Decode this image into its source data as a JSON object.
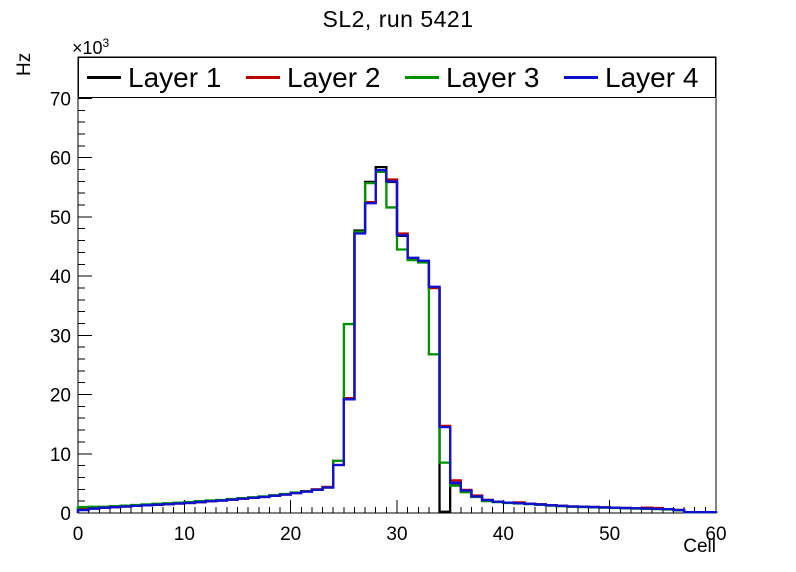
{
  "chart_data": {
    "type": "histogram-step",
    "title": "SL2, run 5421",
    "xlabel": "Cell",
    "ylabel": "Hz",
    "y_multiplier": "×10",
    "y_exponent": "3",
    "xlim": [
      0,
      60
    ],
    "ylim": [
      0,
      77
    ],
    "y_units": "×10³ Hz (values below are in thousands of Hz)",
    "bin_width": 1,
    "grid": false,
    "legend_position": "top-inside-full-width",
    "x_major_ticks": [
      0,
      10,
      20,
      30,
      40,
      50,
      60
    ],
    "x_minor_step": 1,
    "y_major_ticks": [
      0,
      10,
      20,
      30,
      40,
      50,
      60,
      70
    ],
    "y_minor_step": 2,
    "frame_color": "#000000",
    "background_color": "#ffffff",
    "series": [
      {
        "name": "Layer 1",
        "color": "#000000",
        "values": [
          0.6,
          0.75,
          0.9,
          1.0,
          1.1,
          1.2,
          1.3,
          1.4,
          1.5,
          1.6,
          1.7,
          1.85,
          2.0,
          2.15,
          2.3,
          2.45,
          2.6,
          2.75,
          2.95,
          3.15,
          3.4,
          3.7,
          3.95,
          4.3,
          8.8,
          19.3,
          47.7,
          55.9,
          58.4,
          55.9,
          46.8,
          43.0,
          42.5,
          38.0,
          0.2,
          5.0,
          3.7,
          2.8,
          2.2,
          1.9,
          1.75,
          1.65,
          1.55,
          1.45,
          1.3,
          1.2,
          1.1,
          1.05,
          1.0,
          0.95,
          0.9,
          0.85,
          0.8,
          0.75,
          0.7,
          0.65,
          0.5,
          0.15,
          0.15,
          0.15
        ]
      },
      {
        "name": "Layer 2",
        "color": "#c00000",
        "values": [
          0.65,
          0.9,
          0.95,
          1.0,
          1.1,
          1.2,
          1.3,
          1.4,
          1.5,
          1.6,
          1.8,
          1.85,
          2.0,
          2.1,
          2.25,
          2.4,
          2.55,
          2.7,
          2.9,
          3.1,
          3.35,
          3.65,
          4.0,
          4.4,
          8.1,
          19.4,
          47.4,
          52.5,
          57.7,
          56.3,
          47.2,
          42.9,
          42.4,
          38.0,
          14.7,
          5.5,
          3.9,
          2.95,
          2.2,
          1.9,
          1.75,
          1.8,
          1.55,
          1.45,
          1.3,
          1.2,
          1.1,
          1.05,
          1.0,
          0.95,
          0.9,
          0.85,
          0.8,
          0.9,
          0.85,
          0.65,
          0.5,
          0.15,
          0.15,
          0.15
        ]
      },
      {
        "name": "Layer 3",
        "color": "#009000",
        "values": [
          1.0,
          1.05,
          1.05,
          1.15,
          1.25,
          1.35,
          1.45,
          1.55,
          1.65,
          1.75,
          1.85,
          2.0,
          2.1,
          2.2,
          2.35,
          2.5,
          2.65,
          2.8,
          3.0,
          3.2,
          3.45,
          3.65,
          3.9,
          4.3,
          8.8,
          31.9,
          47.5,
          55.7,
          57.6,
          51.6,
          44.5,
          42.7,
          42.3,
          26.8,
          8.5,
          4.6,
          3.5,
          2.7,
          2.0,
          1.85,
          1.7,
          1.6,
          1.5,
          1.4,
          1.25,
          1.15,
          1.05,
          1.0,
          0.95,
          0.9,
          0.85,
          0.8,
          0.75,
          0.7,
          0.65,
          0.6,
          0.45,
          0.12,
          0.12,
          0.12
        ]
      },
      {
        "name": "Layer 4",
        "color": "#1010d0",
        "values": [
          0.5,
          0.75,
          0.9,
          1.0,
          1.1,
          1.2,
          1.3,
          1.4,
          1.5,
          1.6,
          1.7,
          1.85,
          2.0,
          2.1,
          2.25,
          2.4,
          2.55,
          2.7,
          2.9,
          3.1,
          3.35,
          3.6,
          3.9,
          4.3,
          8.1,
          19.2,
          47.2,
          52.3,
          57.9,
          56.0,
          46.9,
          43.1,
          42.6,
          38.2,
          14.5,
          5.1,
          3.8,
          2.8,
          2.2,
          1.9,
          1.75,
          1.65,
          1.55,
          1.45,
          1.3,
          1.2,
          1.1,
          1.05,
          1.0,
          0.95,
          0.9,
          0.85,
          0.8,
          0.75,
          0.7,
          0.65,
          0.5,
          0.15,
          0.15,
          0.15
        ]
      }
    ]
  }
}
